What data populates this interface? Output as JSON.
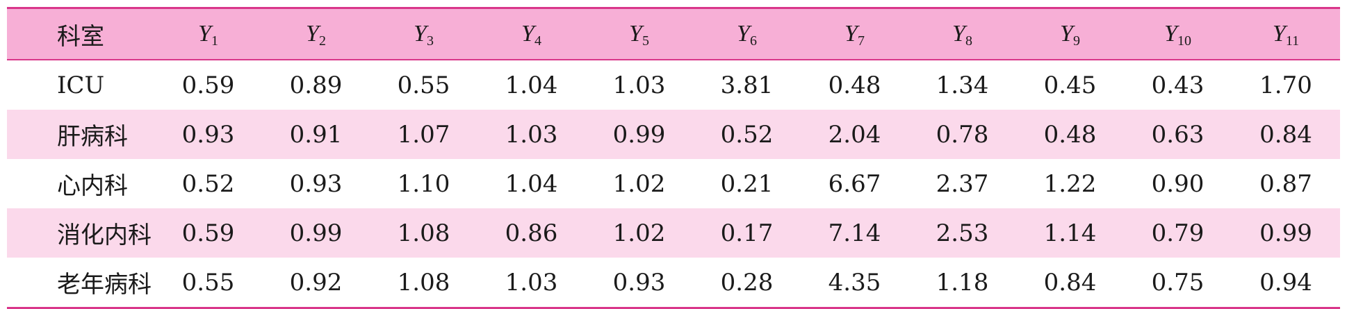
{
  "table": {
    "header_first": "科室",
    "columns": [
      {
        "letter": "Y",
        "sub": "1"
      },
      {
        "letter": "Y",
        "sub": "2"
      },
      {
        "letter": "Y",
        "sub": "3"
      },
      {
        "letter": "Y",
        "sub": "4"
      },
      {
        "letter": "Y",
        "sub": "5"
      },
      {
        "letter": "Y",
        "sub": "6"
      },
      {
        "letter": "Y",
        "sub": "7"
      },
      {
        "letter": "Y",
        "sub": "8"
      },
      {
        "letter": "Y",
        "sub": "9"
      },
      {
        "letter": "Y",
        "sub": "10"
      },
      {
        "letter": "Y",
        "sub": "11"
      }
    ],
    "rows": [
      {
        "dept": "ICU",
        "values": [
          "0.59",
          "0.89",
          "0.55",
          "1.04",
          "1.03",
          "3.81",
          "0.48",
          "1.34",
          "0.45",
          "0.43",
          "1.70"
        ]
      },
      {
        "dept": "肝病科",
        "values": [
          "0.93",
          "0.91",
          "1.07",
          "1.03",
          "0.99",
          "0.52",
          "2.04",
          "0.78",
          "0.48",
          "0.63",
          "0.84"
        ]
      },
      {
        "dept": "心内科",
        "values": [
          "0.52",
          "0.93",
          "1.10",
          "1.04",
          "1.02",
          "0.21",
          "6.67",
          "2.37",
          "1.22",
          "0.90",
          "0.87"
        ]
      },
      {
        "dept": "消化内科",
        "values": [
          "0.59",
          "0.99",
          "1.08",
          "0.86",
          "1.02",
          "0.17",
          "7.14",
          "2.53",
          "1.14",
          "0.79",
          "0.99"
        ]
      },
      {
        "dept": "老年病科",
        "values": [
          "0.55",
          "0.92",
          "1.08",
          "1.03",
          "0.93",
          "0.28",
          "4.35",
          "1.18",
          "0.84",
          "0.75",
          "0.94"
        ]
      }
    ]
  },
  "colors": {
    "header_bg": "#f7afd6",
    "alt_row_bg": "#fbd9eb",
    "rule": "#d9368a"
  }
}
